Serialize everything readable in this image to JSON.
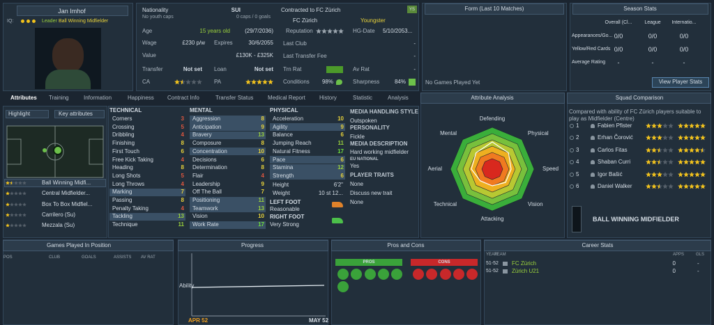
{
  "player": {
    "name": "Jan Imhof",
    "iq_label": "IQ:",
    "leader": "Leader",
    "role": "Ball Winning Midfielder"
  },
  "info": {
    "nationality_label": "Nationality",
    "nationality": "SUI",
    "youth_caps": "No youth caps",
    "caps": "0 caps / 0 goals",
    "contract": "Contracted to FC Zürich",
    "club": "FC Zürich",
    "status": "Youngster",
    "status_badge": "YS",
    "age_label": "Age",
    "age": "15 years old",
    "dob": "(29/7/2036)",
    "wage_label": "Wage",
    "wage": "£230 p/w",
    "expires_label": "Expires",
    "expires": "30/6/2055",
    "value_label": "Value",
    "value": "£130K - £325K",
    "transfer_label": "Transfer",
    "transfer": "Not set",
    "loan_label": "Loan",
    "loan": "Not set",
    "ca_label": "CA",
    "ca_stars": 1.5,
    "pa_label": "PA",
    "pa_stars": 5,
    "reputation_label": "Reputation",
    "reputation_stars": 5,
    "hg_label": "HG-Date",
    "hg": "5/10/2053...",
    "last_club_label": "Last Club",
    "last_club": "-",
    "fee_label": "Last Transfer Fee",
    "fee": "-",
    "trn_label": "Trn Rat",
    "av_label": "Av Rat",
    "av": "-",
    "conditions_label": "Conditions",
    "conditions": "98%",
    "sharpness_label": "Sharpness",
    "sharpness": "84%"
  },
  "form": {
    "title": "Form (Last 10 Matches)",
    "empty": "No Games Played Yet"
  },
  "season": {
    "title": "Season Stats",
    "columns": [
      "Overall (Cl...",
      "League",
      "Internatio..."
    ],
    "rows": [
      {
        "label": "Appearances/Go...",
        "values": [
          "0/0",
          "0/0",
          "0/0"
        ]
      },
      {
        "label": "Yellow/Red Cards",
        "values": [
          "0/0",
          "0/0",
          "0/0"
        ]
      },
      {
        "label": "Average Rating",
        "values": [
          "-",
          "-",
          "-"
        ]
      }
    ],
    "button": "View Player Stats"
  },
  "tabs": [
    "Attributes",
    "Training",
    "Information",
    "Happiness",
    "Contract Info",
    "Transfer Status",
    "Medical Report",
    "History",
    "Statistic",
    "Analysis"
  ],
  "left": {
    "highlight": "Highlight",
    "key_attributes": "Key attributes",
    "positions": [
      {
        "name": "Ball Winning Midfi...",
        "stars": 1.5
      },
      {
        "name": "Central Midfielder...",
        "stars": 1
      },
      {
        "name": "Box To Box Midfiel...",
        "stars": 1
      },
      {
        "name": "Carrilero (Su)",
        "stars": 1
      },
      {
        "name": "Mezzala (Su)",
        "stars": 1
      }
    ]
  },
  "attributes": {
    "technical": {
      "title": "TECHNICAL",
      "items": [
        {
          "name": "Corners",
          "value": "3"
        },
        {
          "name": "Crossing",
          "value": "5"
        },
        {
          "name": "Dribbling",
          "value": "4"
        },
        {
          "name": "Finishing",
          "value": "8"
        },
        {
          "name": "First Touch",
          "value": "6"
        },
        {
          "name": "Free Kick Taking",
          "value": "4"
        },
        {
          "name": "Heading",
          "value": "8"
        },
        {
          "name": "Long Shots",
          "value": "5"
        },
        {
          "name": "Long Throws",
          "value": "4"
        },
        {
          "name": "Marking",
          "value": "7",
          "key": true
        },
        {
          "name": "Passing",
          "value": "8"
        },
        {
          "name": "Penalty Taking",
          "value": "4"
        },
        {
          "name": "Tackling",
          "value": "13",
          "key": true
        },
        {
          "name": "Technique",
          "value": "11"
        }
      ]
    },
    "mental": {
      "title": "MENTAL",
      "items": [
        {
          "name": "Aggression",
          "value": "8",
          "key": true
        },
        {
          "name": "Anticipation",
          "value": "9",
          "key": true
        },
        {
          "name": "Bravery",
          "value": "13",
          "key": true
        },
        {
          "name": "Composure",
          "value": "8"
        },
        {
          "name": "Concentration",
          "value": "10",
          "key": true
        },
        {
          "name": "Decisions",
          "value": "6"
        },
        {
          "name": "Determination",
          "value": "8"
        },
        {
          "name": "Flair",
          "value": "4"
        },
        {
          "name": "Leadership",
          "value": "9"
        },
        {
          "name": "Off The Ball",
          "value": "7"
        },
        {
          "name": "Positioning",
          "value": "11",
          "key": true
        },
        {
          "name": "Teamwork",
          "value": "13",
          "key": true
        },
        {
          "name": "Vision",
          "value": "10"
        },
        {
          "name": "Work Rate",
          "value": "17",
          "key": true
        }
      ]
    },
    "physical": {
      "title": "PHYSICAL",
      "items": [
        {
          "name": "Acceleration",
          "value": "10"
        },
        {
          "name": "Agility",
          "value": "9",
          "key": true
        },
        {
          "name": "Balance",
          "value": "6"
        },
        {
          "name": "Jumping Reach",
          "value": "11"
        },
        {
          "name": "Natural Fitness",
          "value": "17"
        },
        {
          "name": "Pace",
          "value": "6",
          "key": true
        },
        {
          "name": "Stamina",
          "value": "12",
          "key": true
        },
        {
          "name": "Strength",
          "value": "6",
          "key": true
        }
      ]
    },
    "height_label": "Height",
    "height": "6'2\"",
    "weight_label": "Weight",
    "weight": "10 st 12...",
    "left_foot_label": "LEFT FOOT",
    "left_foot": "Reasonable",
    "right_foot_label": "RIGHT FOOT",
    "right_foot": "Very Strong"
  },
  "media": {
    "style_label": "MEDIA HANDLING STYLE",
    "style": "Outspoken",
    "personality_label": "PERSONALITY",
    "personality": "Fickle",
    "description_label": "MEDIA DESCRIPTION",
    "description": "Hard working midfielder",
    "eu_label": "EU NATIONAL",
    "eu": "Yes",
    "traits_label": "PLAYER TRAITS",
    "traits": "None",
    "discuss": "Discuss new trait",
    "discuss_value": "None"
  },
  "chart_data": {
    "type": "radar",
    "title": "Attribute Analysis",
    "categories": [
      "Defending",
      "Physical",
      "Speed",
      "Vision",
      "Attacking",
      "Technical",
      "Aerial",
      "Mental"
    ],
    "values": [
      13,
      11,
      9,
      9,
      8,
      8,
      10,
      11
    ],
    "rlim": [
      0,
      20
    ],
    "color": "#ffffff"
  },
  "squad": {
    "title": "Squad Comparison",
    "subtitle": "Compared with ability of FC Zürich players suitable to play as Midfielder (Centre)",
    "players": [
      {
        "rank": "1",
        "name": "Fabien Pfister",
        "ca": 3,
        "pa": 5
      },
      {
        "rank": "2",
        "name": "Erhan Čorović",
        "ca": 3,
        "pa": 5
      },
      {
        "rank": "3",
        "name": "Carlos Fitas",
        "ca": 2.5,
        "pa": 4.5
      },
      {
        "rank": "4",
        "name": "Shaban Curri",
        "ca": 2.5,
        "pa": 5
      },
      {
        "rank": "5",
        "name": "Igor Bašić",
        "ca": 3,
        "pa": 5
      },
      {
        "rank": "6",
        "name": "Daniel Walker",
        "ca": 2.5,
        "pa": 5
      }
    ],
    "role": "BALL WINNING MIDFIELDER"
  },
  "games": {
    "title": "Games Played In Position",
    "columns": [
      "POS",
      "CLUB",
      "GOALS",
      "ASSISTS",
      "AV RAT"
    ]
  },
  "progress": {
    "title": "Progress",
    "label": "Ability",
    "start": "APR 52",
    "end": "MAY 52"
  },
  "pros_cons": {
    "title": "Pros and Cons",
    "pros": "PROS",
    "cons": "CONS"
  },
  "career": {
    "title": "Career Stats",
    "columns": [
      "YEAR",
      "TEAM",
      "APPS",
      "GLS"
    ],
    "rows": [
      [
        "51-52",
        "FC Zürich",
        "0",
        "-"
      ],
      [
        "51-52",
        "Zürich U21",
        "0",
        "-"
      ]
    ]
  }
}
